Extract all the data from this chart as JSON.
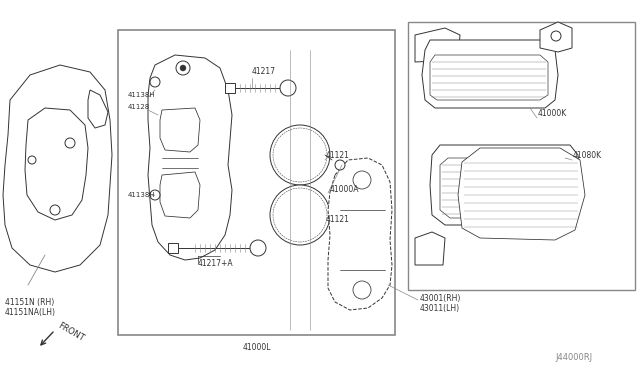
{
  "bg_color": "#ffffff",
  "line_color": "#333333",
  "gray_color": "#888888",
  "figsize": [
    6.4,
    3.72
  ],
  "dpi": 100,
  "labels": {
    "41151N_RH": "41151N (RH)",
    "41151NA_LH": "41151NA(LH)",
    "41138H_top": "41138H",
    "41128": "41128",
    "41217": "41217",
    "41000A": "41000A",
    "41121_top": "41121",
    "41138H_bot": "41138H",
    "41217A": "41217+A",
    "41121_bot": "41121",
    "41000L": "41000L",
    "41000K": "41000K",
    "41080K": "41080K",
    "43001_RH": "43001(RH)",
    "43011_LH": "43011(LH)",
    "J44000RJ": "J44000RJ",
    "FRONT": "FRONT"
  }
}
